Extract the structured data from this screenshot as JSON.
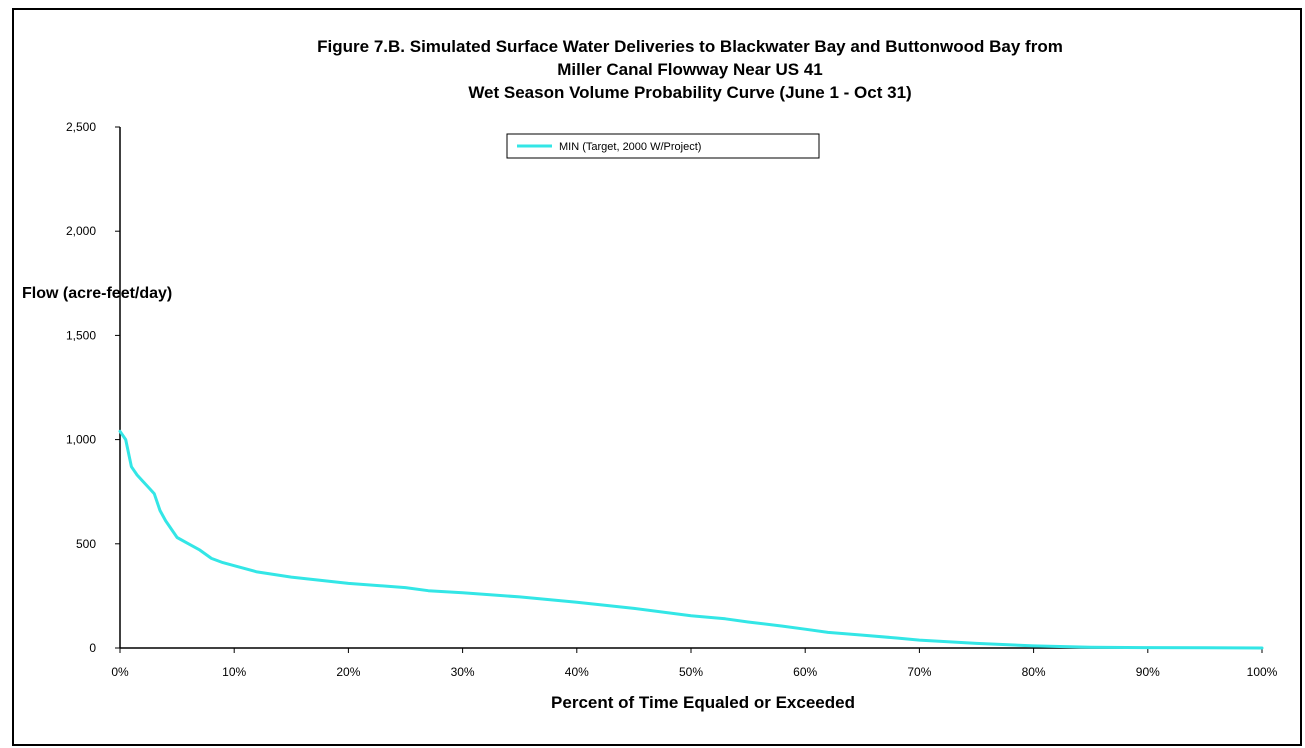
{
  "chart_data": {
    "type": "line",
    "title_lines": [
      "Figure 7.B. Simulated Surface Water Deliveries to Blackwater Bay and Buttonwood Bay from",
      "Miller Canal Flowway Near US 41",
      "Wet Season Volume Probability Curve (June 1 - Oct 31)"
    ],
    "xlabel": "Percent of Time Equaled or Exceeded",
    "ylabel": "Flow (acre-feet/day)",
    "xlim": [
      0,
      100
    ],
    "ylim": [
      0,
      2500
    ],
    "x_ticks": [
      0,
      10,
      20,
      30,
      40,
      50,
      60,
      70,
      80,
      90,
      100
    ],
    "x_tick_labels": [
      "0%",
      "10%",
      "20%",
      "30%",
      "40%",
      "50%",
      "60%",
      "70%",
      "80%",
      "90%",
      "100%"
    ],
    "y_ticks": [
      0,
      500,
      1000,
      1500,
      2000,
      2500
    ],
    "y_tick_labels": [
      "0",
      "500",
      "1,000",
      "1,500",
      "2,000",
      "2,500"
    ],
    "grid": false,
    "legend_position": "top-center",
    "series": [
      {
        "name": "MIN (Target, 2000 W/Project)",
        "color": "#33e6e6",
        "x": [
          0,
          0.5,
          1,
          1.5,
          2,
          2.5,
          3,
          3.5,
          4,
          5,
          6,
          7,
          8,
          9,
          10,
          12,
          15,
          20,
          25,
          27,
          30,
          35,
          40,
          45,
          50,
          53,
          55,
          58,
          60,
          62,
          65,
          68,
          70,
          75,
          80,
          85,
          90,
          95,
          100
        ],
        "values": [
          1040,
          1000,
          870,
          830,
          800,
          770,
          740,
          660,
          610,
          530,
          500,
          470,
          430,
          410,
          395,
          365,
          340,
          310,
          290,
          275,
          265,
          245,
          220,
          190,
          155,
          140,
          125,
          105,
          90,
          75,
          62,
          48,
          38,
          22,
          10,
          4,
          2,
          1,
          0
        ]
      }
    ]
  }
}
